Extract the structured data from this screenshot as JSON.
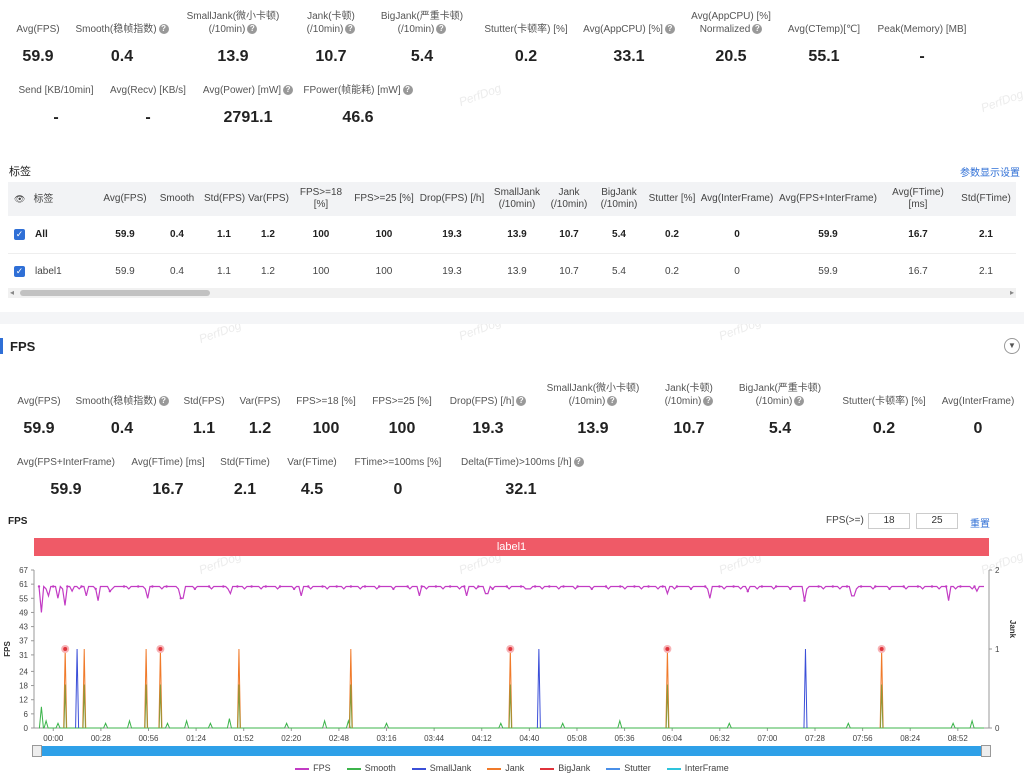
{
  "summary": {
    "row1": [
      {
        "label": "Avg(FPS)",
        "value": "59.9"
      },
      {
        "label": "Smooth(稳帧指数)",
        "value": "0.4"
      },
      {
        "label": "SmallJank(微小卡顿)\n(/10min)",
        "value": "13.9"
      },
      {
        "label": "Jank(卡顿)\n(/10min)",
        "value": "10.7"
      },
      {
        "label": "BigJank(严重卡顿)\n(/10min)",
        "value": "5.4"
      },
      {
        "label": "Stutter(卡顿率) [%]",
        "value": "0.2"
      },
      {
        "label": "Avg(AppCPU) [%]",
        "value": "33.1"
      },
      {
        "label": "Avg(AppCPU) [%]\nNormalized",
        "value": "20.5"
      },
      {
        "label": "Avg(CTemp)[℃]",
        "value": "55.1"
      },
      {
        "label": "Peak(Memory) [MB]",
        "value": "-"
      }
    ],
    "row2": [
      {
        "label": "Send [KB/10min]",
        "value": "-"
      },
      {
        "label": "Avg(Recv) [KB/s]",
        "value": "-"
      },
      {
        "label": "Avg(Power) [mW]",
        "value": "2791.1"
      },
      {
        "label": "FPower(帧能耗) [mW]",
        "value": "46.6"
      }
    ]
  },
  "watermark": "PerfDog",
  "tags_section": {
    "title": "标签",
    "settings_link": "参数显示设置",
    "columns": [
      "标签",
      "Avg(FPS)",
      "Smooth",
      "Std(FPS)",
      "Var(FPS)",
      "FPS>=18 [%]",
      "FPS>=25 [%]",
      "Drop(FPS) [/h]",
      "SmallJank (/10min)",
      "Jank (/10min)",
      "BigJank (/10min)",
      "Stutter [%]",
      "Avg(InterFrame)",
      "Avg(FPS+InterFrame)",
      "Avg(FTime) [ms]",
      "Std(FTime)"
    ],
    "rows": [
      {
        "name": "All",
        "values": [
          "59.9",
          "0.4",
          "1.1",
          "1.2",
          "100",
          "100",
          "19.3",
          "13.9",
          "10.7",
          "5.4",
          "0.2",
          "0",
          "59.9",
          "16.7",
          "2.1"
        ]
      },
      {
        "name": "label1",
        "values": [
          "59.9",
          "0.4",
          "1.1",
          "1.2",
          "100",
          "100",
          "19.3",
          "13.9",
          "10.7",
          "5.4",
          "0.2",
          "0",
          "59.9",
          "16.7",
          "2.1"
        ]
      }
    ]
  },
  "fps_section": {
    "title": "FPS",
    "row1": [
      {
        "label": "Avg(FPS)",
        "value": "59.9"
      },
      {
        "label": "Smooth(稳帧指数)",
        "value": "0.4"
      },
      {
        "label": "Std(FPS)",
        "value": "1.1"
      },
      {
        "label": "Var(FPS)",
        "value": "1.2"
      },
      {
        "label": "FPS>=18 [%]",
        "value": "100"
      },
      {
        "label": "FPS>=25 [%]",
        "value": "100"
      },
      {
        "label": "Drop(FPS) [/h]",
        "value": "19.3"
      },
      {
        "label": "SmallJank(微小卡顿)\n(/10min)",
        "value": "13.9"
      },
      {
        "label": "Jank(卡顿)\n(/10min)",
        "value": "10.7"
      },
      {
        "label": "BigJank(严重卡顿)\n(/10min)",
        "value": "5.4"
      },
      {
        "label": "Stutter(卡顿率) [%]",
        "value": "0.2"
      },
      {
        "label": "Avg(InterFrame)",
        "value": "0"
      }
    ],
    "row2": [
      {
        "label": "Avg(FPS+InterFrame)",
        "value": "59.9"
      },
      {
        "label": "Avg(FTime) [ms]",
        "value": "16.7"
      },
      {
        "label": "Std(FTime)",
        "value": "2.1"
      },
      {
        "label": "Var(FTime)",
        "value": "4.5"
      },
      {
        "label": "FTime>=100ms [%]",
        "value": "0"
      },
      {
        "label": "Delta(FTime)>100ms [/h]",
        "value": "32.1"
      }
    ]
  },
  "chart_header": {
    "title": "FPS",
    "threshold_label": "FPS(>=)",
    "threshold1": "18",
    "threshold2": "25",
    "reset": "重置",
    "label_bar": "label1"
  },
  "chart_data": {
    "type": "line",
    "ylabel": "FPS",
    "y2label": "Jank",
    "yticks": [
      "0",
      "6",
      "12",
      "18",
      "24",
      "31",
      "37",
      "43",
      "49",
      "55",
      "61",
      "67"
    ],
    "y2ticks": [
      "0",
      "1",
      "2"
    ],
    "xticks": [
      "00:00",
      "00:28",
      "00:56",
      "01:24",
      "01:52",
      "02:20",
      "02:48",
      "03:16",
      "03:44",
      "04:12",
      "04:40",
      "05:08",
      "05:36",
      "06:04",
      "06:32",
      "07:00",
      "07:28",
      "07:56",
      "08:24",
      "08:52"
    ],
    "ylim": [
      0,
      67
    ],
    "y2lim": [
      0,
      2
    ],
    "series": [
      {
        "name": "FPS",
        "color": "#c23bc4"
      },
      {
        "name": "Smooth",
        "color": "#3cb44b"
      },
      {
        "name": "SmallJank",
        "color": "#3b4fd8"
      },
      {
        "name": "Jank",
        "color": "#f07a2a"
      },
      {
        "name": "BigJank",
        "color": "#e0333b"
      },
      {
        "name": "Stutter",
        "color": "#4a8fe8"
      },
      {
        "name": "InterFrame",
        "color": "#2ec4dc"
      }
    ],
    "fps_baseline": 60,
    "fps_dips": [
      [
        0.05,
        49
      ],
      [
        0.2,
        56
      ],
      [
        0.4,
        55
      ],
      [
        0.55,
        52
      ],
      [
        0.7,
        58
      ],
      [
        1.0,
        56
      ],
      [
        1.25,
        54
      ],
      [
        1.5,
        58
      ],
      [
        2.3,
        55
      ],
      [
        3.0,
        55
      ],
      [
        4.0,
        57
      ],
      [
        5.5,
        56
      ],
      [
        8.0,
        56
      ],
      [
        9.0,
        56
      ],
      [
        9.4,
        57
      ],
      [
        10.3,
        59
      ],
      [
        11.6,
        58
      ],
      [
        13.2,
        57
      ],
      [
        14.1,
        55
      ],
      [
        14.9,
        58
      ],
      [
        16.1,
        54
      ],
      [
        17.1,
        56
      ],
      [
        19.1,
        54
      ],
      [
        19.7,
        58
      ]
    ],
    "jank_spikes": [
      0.55,
      0.95,
      2.25,
      2.55,
      4.2,
      6.55,
      9.9,
      13.2,
      17.7
    ],
    "bigjank_spikes": [
      0.55,
      2.55,
      9.9,
      13.2,
      17.7
    ],
    "smalljank_spikes": [
      0.8,
      10.5,
      16.1
    ],
    "smooth_points": [
      [
        0.05,
        9
      ],
      [
        0.15,
        3
      ],
      [
        0.4,
        2
      ],
      [
        1.4,
        2
      ],
      [
        1.9,
        3
      ],
      [
        2.7,
        2
      ],
      [
        3.1,
        3
      ],
      [
        3.6,
        2
      ],
      [
        4.0,
        4
      ],
      [
        5.2,
        2
      ],
      [
        6.0,
        3
      ],
      [
        6.5,
        3
      ],
      [
        7.3,
        2
      ],
      [
        9.7,
        2
      ],
      [
        11.0,
        2
      ],
      [
        12.2,
        3
      ],
      [
        14.5,
        2
      ],
      [
        17.0,
        2
      ],
      [
        19.2,
        2
      ],
      [
        19.6,
        3
      ]
    ]
  }
}
